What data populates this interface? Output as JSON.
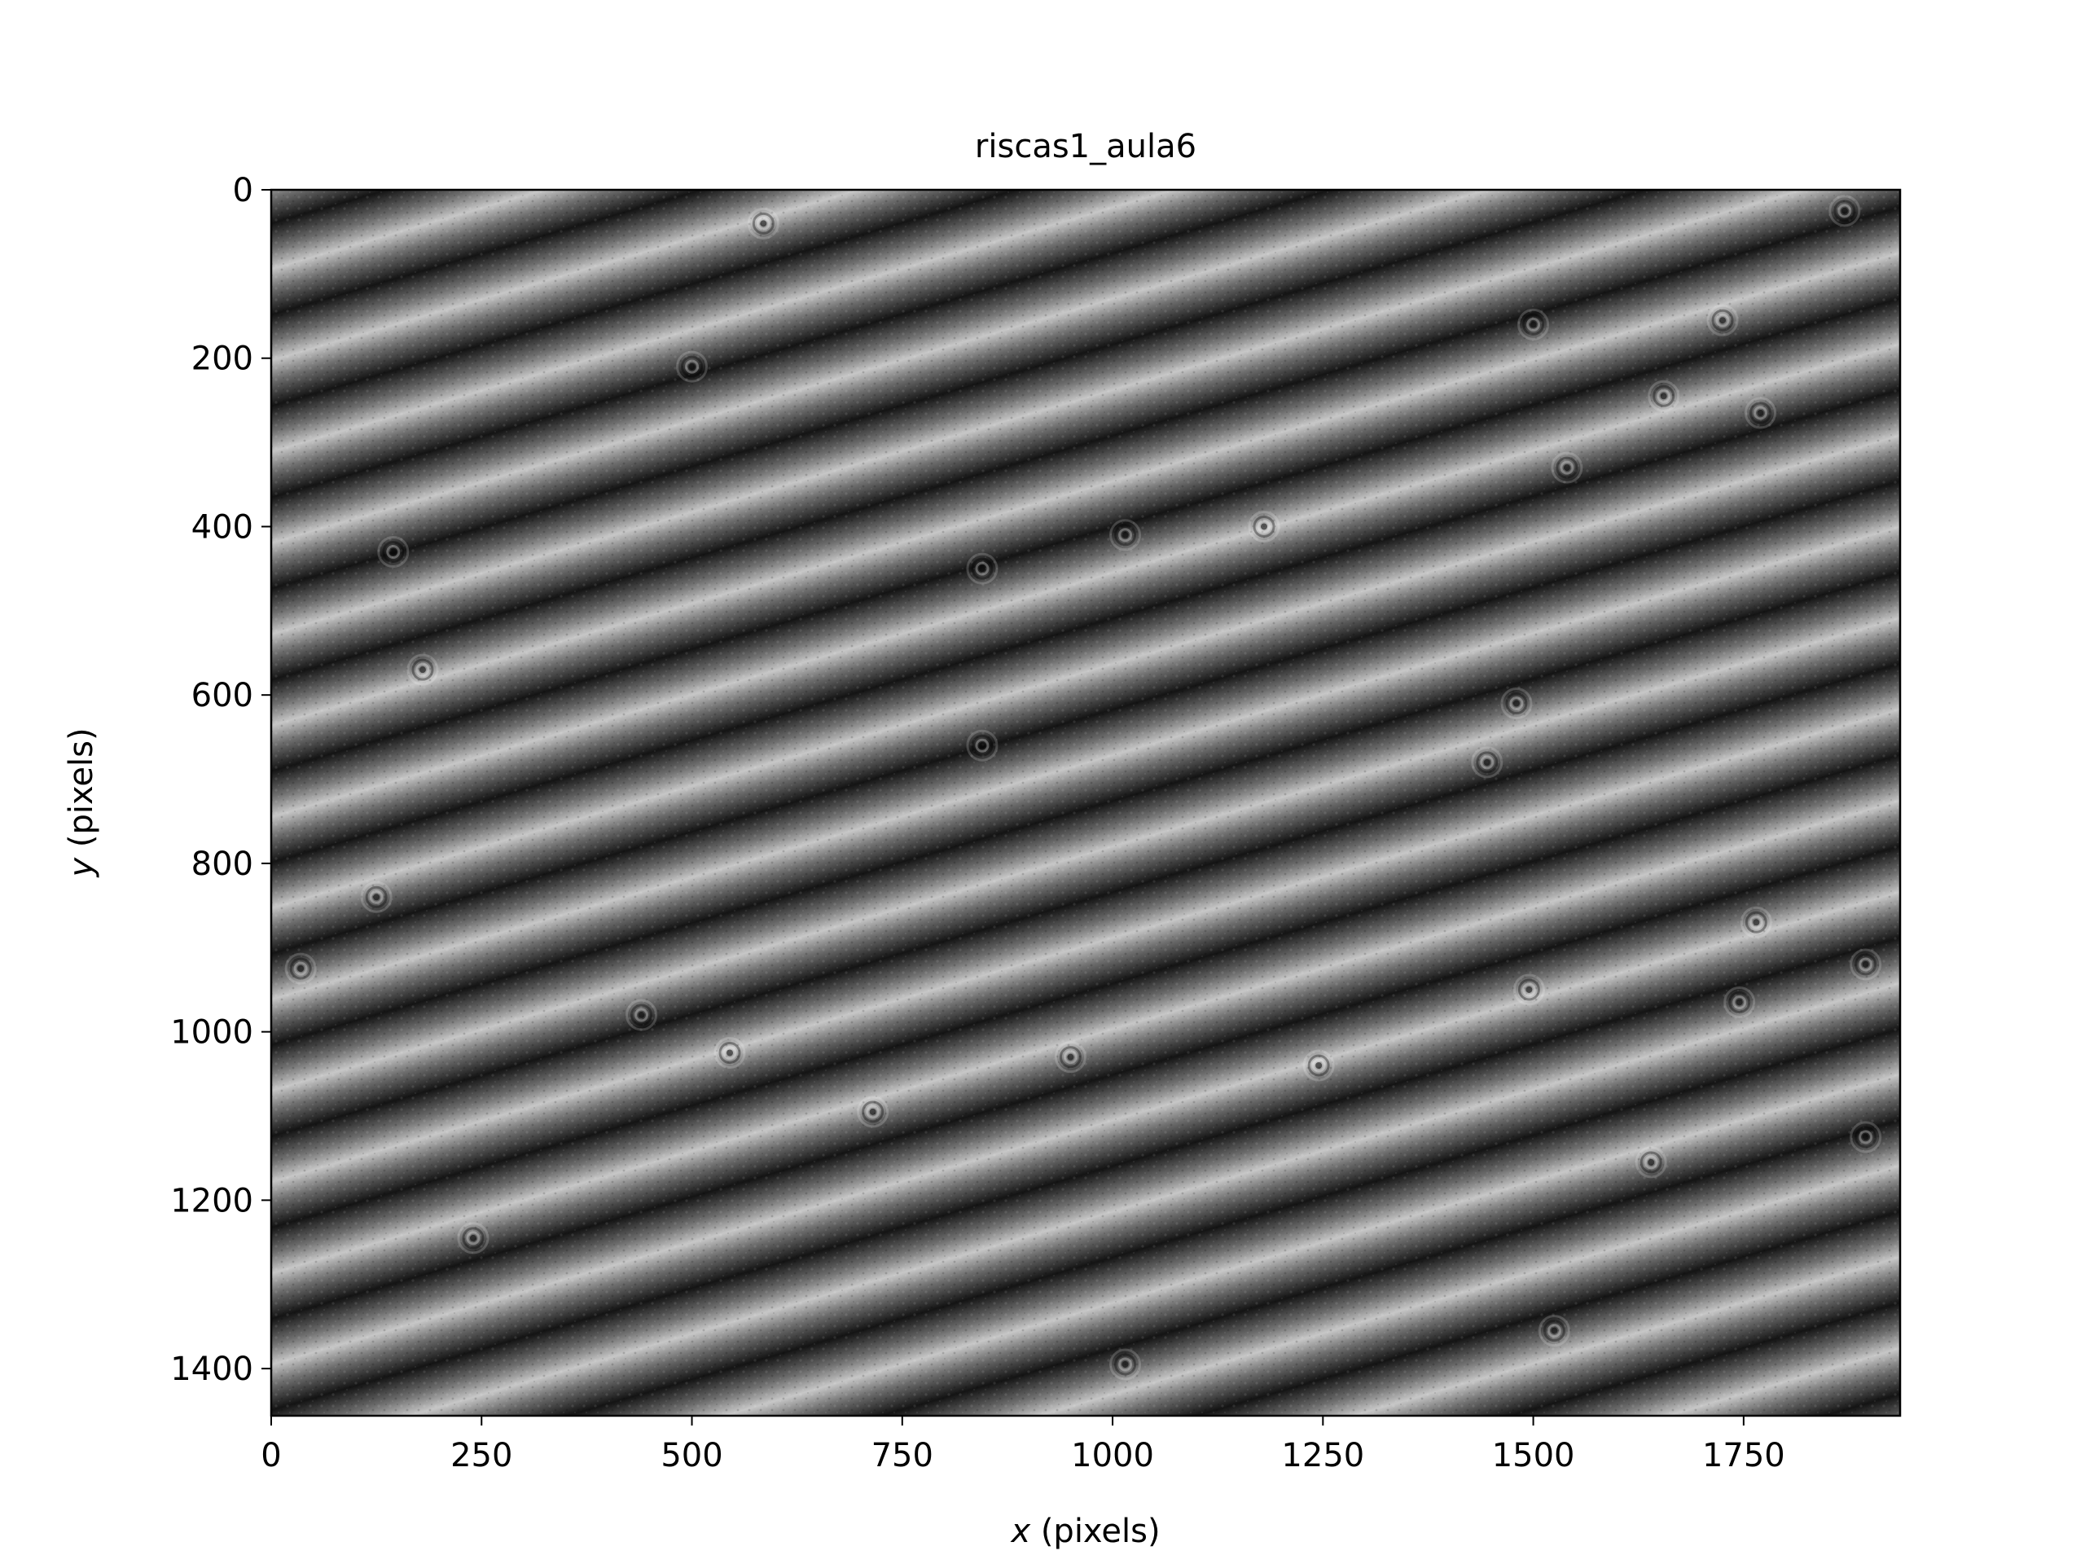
{
  "chart_data": {
    "type": "heatmap",
    "title": "riscas1_aula6",
    "xlabel": {
      "var": "x",
      "rest": " (pixels)"
    },
    "ylabel": {
      "var": "y",
      "rest": " (pixels)"
    },
    "xlim": [
      0,
      1936
    ],
    "ylim": [
      1456,
      0
    ],
    "colormap": "gray",
    "x_ticks": [
      0,
      250,
      500,
      750,
      1000,
      1250,
      1500,
      1750
    ],
    "x_tick_labels": [
      "0",
      "250",
      "500",
      "750",
      "1000",
      "1250",
      "1500",
      "1750"
    ],
    "y_ticks": [
      0,
      200,
      400,
      600,
      800,
      1000,
      1200,
      1400
    ],
    "y_tick_labels": [
      "0",
      "200",
      "400",
      "600",
      "800",
      "1000",
      "1200",
      "1400"
    ],
    "fringes": {
      "count": 16,
      "period": 100,
      "phase_left": 40,
      "phase_right": 20,
      "bright_value": 0.78,
      "dark_value": 0.08
    },
    "ring_features": [
      {
        "x": 585,
        "y": 40
      },
      {
        "x": 1870,
        "y": 25
      },
      {
        "x": 1500,
        "y": 160
      },
      {
        "x": 1725,
        "y": 155
      },
      {
        "x": 500,
        "y": 210
      },
      {
        "x": 1655,
        "y": 245
      },
      {
        "x": 1770,
        "y": 265
      },
      {
        "x": 1540,
        "y": 330
      },
      {
        "x": 1015,
        "y": 410
      },
      {
        "x": 1180,
        "y": 400
      },
      {
        "x": 145,
        "y": 430
      },
      {
        "x": 845,
        "y": 450
      },
      {
        "x": 180,
        "y": 570
      },
      {
        "x": 1480,
        "y": 610
      },
      {
        "x": 845,
        "y": 660
      },
      {
        "x": 1445,
        "y": 680
      },
      {
        "x": 125,
        "y": 840
      },
      {
        "x": 1765,
        "y": 870
      },
      {
        "x": 35,
        "y": 925
      },
      {
        "x": 1895,
        "y": 920
      },
      {
        "x": 440,
        "y": 980
      },
      {
        "x": 1495,
        "y": 950
      },
      {
        "x": 1745,
        "y": 965
      },
      {
        "x": 545,
        "y": 1025
      },
      {
        "x": 950,
        "y": 1030
      },
      {
        "x": 1245,
        "y": 1040
      },
      {
        "x": 715,
        "y": 1095
      },
      {
        "x": 1640,
        "y": 1155
      },
      {
        "x": 1895,
        "y": 1125
      },
      {
        "x": 240,
        "y": 1245
      },
      {
        "x": 1525,
        "y": 1355
      },
      {
        "x": 1015,
        "y": 1395
      }
    ]
  }
}
